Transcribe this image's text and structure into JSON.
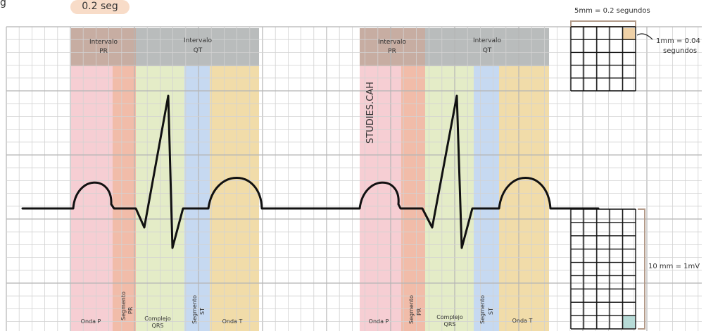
{
  "top_badge": "0.2 seg",
  "corner_mark": "g",
  "watermark": "STUDIES.CAH",
  "intervals": [
    {
      "line1": "Intervalo",
      "line2": "PR"
    },
    {
      "line1": "Intervalo",
      "line2": "QT"
    },
    {
      "line1": "Intervalo",
      "line2": "PR"
    },
    {
      "line1": "Intervalo",
      "line2": "QT"
    }
  ],
  "segments": {
    "onda_p": "Onda P",
    "seg_pr_1": "Segmento",
    "seg_pr_2": "PR",
    "qrs_1": "Complejo",
    "qrs_2": "QRS",
    "seg_st_1": "Segmento",
    "seg_st_2": "ST",
    "onda_t": "Onda T"
  },
  "legend": {
    "small_box_title": "5mm = 0.2 segundos",
    "one_mm_1": "1mm = 0.04",
    "one_mm_2": "segundos",
    "ten_mm": "10 mm = 1mV"
  },
  "colors": {
    "p_wave": "#f4c6cb",
    "pr_segment": "#eeb09a",
    "qrs": "#dfe9bd",
    "st_segment": "#bcd2ee",
    "t_wave": "#efd69a",
    "pr_header": "#c7ada2",
    "qt_header": "#b9bcbc"
  }
}
